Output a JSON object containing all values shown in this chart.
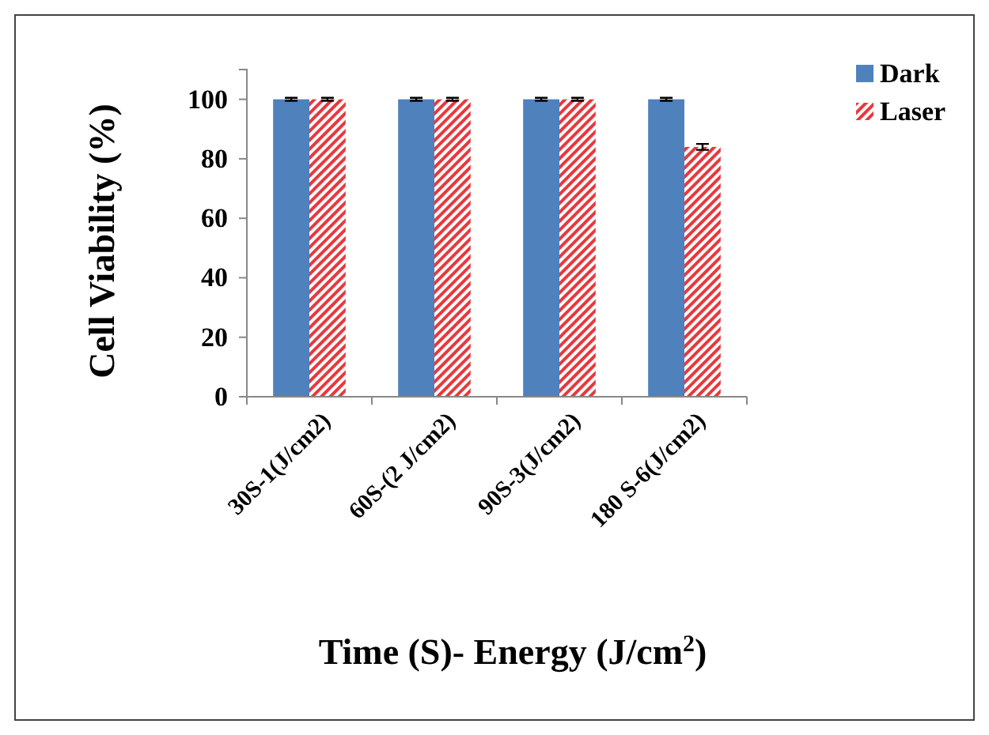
{
  "chart_data": {
    "type": "bar",
    "xlabel": "Time (S)- Energy (J/cm$^{2}$)",
    "ylabel": "Cell Viability (%)",
    "categories": [
      "30S-1(J/cm2)",
      "60S-(2 J/cm2)",
      "90S-3(J/cm2)",
      "180 S-6(J/cm2)"
    ],
    "series": [
      {
        "name": "Dark",
        "color": "#4f81bd",
        "values": [
          100,
          100,
          100,
          100
        ],
        "errors": [
          0.5,
          0.5,
          0.5,
          0.5
        ]
      },
      {
        "name": "Laser",
        "color": "#e8383d",
        "values": [
          100,
          100,
          100,
          84
        ],
        "errors": [
          0.5,
          0.5,
          0.5,
          1
        ]
      }
    ],
    "ylim": [
      0,
      110
    ],
    "yticks": [
      0,
      20,
      40,
      60,
      80,
      100
    ],
    "grid": false,
    "legend": "top right"
  }
}
